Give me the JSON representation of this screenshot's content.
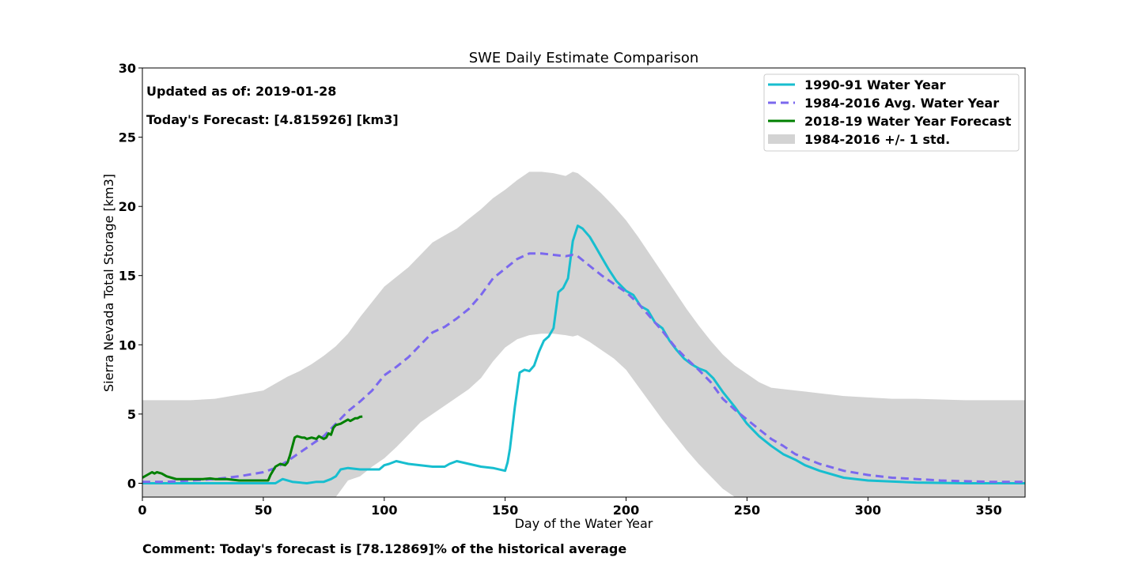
{
  "chart_data": {
    "type": "line",
    "title": "SWE Daily Estimate Comparison",
    "xlabel": "Day of the Water Year",
    "ylabel": "Sierra Nevada Total Storage [km3]",
    "xlim": [
      0,
      365
    ],
    "ylim": [
      -1,
      30
    ],
    "x_ticks": [
      0,
      50,
      100,
      150,
      200,
      250,
      300,
      350
    ],
    "y_ticks": [
      0,
      5,
      10,
      15,
      20,
      25,
      30
    ],
    "grid": false,
    "legend_position": "top-right",
    "annotations": {
      "updated": "Updated as of: 2019-01-28",
      "forecast": "Today's Forecast: [4.815926] [km3]",
      "comment": "Comment: Today's forecast is [78.12869]% of the historical average"
    },
    "colors": {
      "wy_1990_91": "#17becf",
      "avg": "#7b68ee",
      "forecast": "#008000",
      "band": "#d3d3d3"
    },
    "series": [
      {
        "name": "1990-91 Water Year",
        "style": "solid",
        "x": [
          0,
          10,
          20,
          30,
          40,
          50,
          53,
          55,
          58,
          62,
          68,
          72,
          75,
          78,
          80,
          82,
          85,
          90,
          95,
          98,
          100,
          102,
          105,
          110,
          115,
          120,
          125,
          127,
          130,
          135,
          140,
          145,
          150,
          151,
          152,
          153,
          154,
          156,
          158,
          160,
          162,
          164,
          166,
          168,
          170,
          172,
          174,
          176,
          178,
          180,
          182,
          185,
          187,
          190,
          193,
          196,
          200,
          203,
          206,
          209,
          212,
          215,
          218,
          221,
          224,
          227,
          230,
          233,
          236,
          240,
          245,
          250,
          255,
          260,
          265,
          270,
          274,
          280,
          290,
          300,
          320,
          340,
          365
        ],
        "values": [
          0.0,
          0.0,
          0.0,
          0.0,
          0.0,
          0.0,
          0.0,
          0.0,
          0.3,
          0.1,
          0.0,
          0.1,
          0.1,
          0.3,
          0.5,
          1.0,
          1.1,
          1.0,
          1.0,
          1.0,
          1.3,
          1.4,
          1.6,
          1.4,
          1.3,
          1.2,
          1.2,
          1.4,
          1.6,
          1.4,
          1.2,
          1.1,
          0.9,
          1.5,
          2.5,
          4.0,
          5.5,
          8.0,
          8.2,
          8.1,
          8.5,
          9.5,
          10.3,
          10.6,
          11.2,
          13.8,
          14.1,
          14.8,
          17.5,
          18.6,
          18.4,
          17.8,
          17.2,
          16.3,
          15.4,
          14.6,
          13.9,
          13.6,
          12.8,
          12.5,
          11.6,
          11.2,
          10.3,
          9.6,
          9.0,
          8.6,
          8.3,
          8.1,
          7.6,
          6.6,
          5.5,
          4.3,
          3.4,
          2.7,
          2.1,
          1.7,
          1.3,
          0.9,
          0.4,
          0.2,
          0.05,
          0.0,
          0.0
        ]
      },
      {
        "name": "1984-2016 Avg. Water Year",
        "style": "dashed",
        "x": [
          0,
          10,
          20,
          30,
          40,
          50,
          55,
          60,
          65,
          70,
          75,
          80,
          85,
          90,
          95,
          100,
          105,
          110,
          115,
          120,
          125,
          130,
          135,
          140,
          145,
          150,
          155,
          160,
          165,
          170,
          175,
          178,
          180,
          185,
          190,
          195,
          200,
          205,
          210,
          215,
          220,
          225,
          230,
          235,
          240,
          245,
          250,
          255,
          260,
          265,
          270,
          280,
          290,
          300,
          310,
          320,
          330,
          340,
          350,
          365
        ],
        "values": [
          0.1,
          0.1,
          0.2,
          0.3,
          0.5,
          0.8,
          1.1,
          1.6,
          2.2,
          2.8,
          3.4,
          4.3,
          5.2,
          5.9,
          6.7,
          7.8,
          8.4,
          9.1,
          10.0,
          10.9,
          11.3,
          11.9,
          12.6,
          13.6,
          14.8,
          15.5,
          16.2,
          16.6,
          16.6,
          16.5,
          16.4,
          16.5,
          16.4,
          15.7,
          15.0,
          14.4,
          13.8,
          13.0,
          12.0,
          11.0,
          9.9,
          9.0,
          8.2,
          7.3,
          6.1,
          5.3,
          4.6,
          3.9,
          3.2,
          2.7,
          2.1,
          1.4,
          0.9,
          0.6,
          0.4,
          0.3,
          0.2,
          0.15,
          0.1,
          0.1
        ]
      },
      {
        "name": "2018-19 Water Year Forecast",
        "style": "solid",
        "x": [
          0,
          2,
          4,
          5,
          6,
          8,
          10,
          12,
          14,
          20,
          25,
          28,
          30,
          35,
          40,
          45,
          50,
          52,
          53,
          55,
          57,
          59,
          60,
          61,
          63,
          64,
          66,
          67,
          68,
          70,
          72,
          73,
          75,
          76,
          77,
          78,
          79,
          80,
          82,
          84,
          85,
          86,
          88,
          89,
          90,
          91
        ],
        "values": [
          0.4,
          0.6,
          0.8,
          0.7,
          0.8,
          0.7,
          0.5,
          0.4,
          0.3,
          0.3,
          0.3,
          0.35,
          0.3,
          0.3,
          0.2,
          0.2,
          0.2,
          0.2,
          0.6,
          1.2,
          1.4,
          1.3,
          1.5,
          2.0,
          3.3,
          3.4,
          3.3,
          3.3,
          3.2,
          3.3,
          3.2,
          3.4,
          3.2,
          3.3,
          3.6,
          3.5,
          4.0,
          4.2,
          4.3,
          4.5,
          4.6,
          4.5,
          4.7,
          4.7,
          4.8,
          4.82
        ]
      }
    ],
    "band": {
      "name": "1984-2016 +/- 1 std.",
      "x": [
        0,
        10,
        20,
        30,
        40,
        50,
        55,
        60,
        65,
        70,
        75,
        80,
        85,
        90,
        95,
        100,
        105,
        110,
        115,
        120,
        125,
        130,
        135,
        140,
        145,
        150,
        155,
        160,
        165,
        170,
        175,
        178,
        180,
        185,
        190,
        195,
        200,
        205,
        210,
        215,
        220,
        225,
        230,
        235,
        240,
        245,
        250,
        255,
        260,
        265,
        270,
        280,
        290,
        300,
        310,
        320,
        330,
        340,
        350,
        365
      ],
      "upper": [
        6.0,
        6.0,
        6.0,
        6.1,
        6.4,
        6.7,
        7.2,
        7.7,
        8.1,
        8.6,
        9.2,
        9.9,
        10.8,
        12.0,
        13.1,
        14.2,
        14.9,
        15.6,
        16.5,
        17.4,
        17.9,
        18.4,
        19.1,
        19.8,
        20.6,
        21.2,
        21.9,
        22.5,
        22.5,
        22.4,
        22.2,
        22.5,
        22.4,
        21.7,
        20.9,
        20.0,
        19.0,
        17.8,
        16.5,
        15.2,
        13.9,
        12.6,
        11.4,
        10.3,
        9.3,
        8.5,
        7.9,
        7.3,
        6.9,
        6.8,
        6.7,
        6.5,
        6.3,
        6.2,
        6.1,
        6.1,
        6.05,
        6.0,
        6.0,
        6.0
      ],
      "lower": [
        -1,
        -1,
        -1,
        -1,
        -1,
        -1,
        -1,
        -1,
        -1,
        -1,
        -1,
        -1,
        0.2,
        0.5,
        1.2,
        1.8,
        2.6,
        3.5,
        4.4,
        5.0,
        5.6,
        6.2,
        6.8,
        7.6,
        8.8,
        9.8,
        10.4,
        10.7,
        10.8,
        10.8,
        10.7,
        10.6,
        10.7,
        10.2,
        9.6,
        9.0,
        8.2,
        7.0,
        5.8,
        4.6,
        3.5,
        2.4,
        1.4,
        0.5,
        -0.4,
        -1,
        -1,
        -1,
        -1,
        -1,
        -1,
        -1,
        -1,
        -1,
        -1,
        -1,
        -1,
        -1,
        -1,
        -1
      ]
    }
  }
}
